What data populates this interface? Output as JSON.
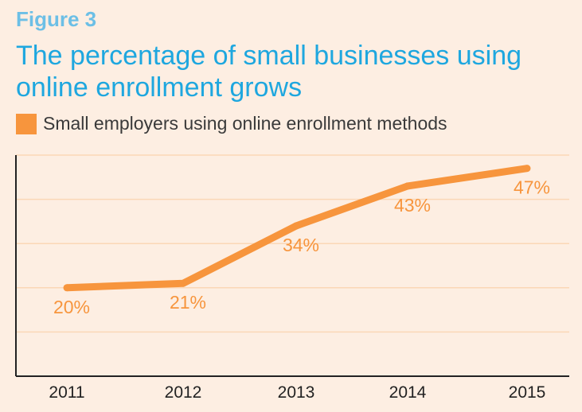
{
  "figure": {
    "label": "Figure 3",
    "title": "The percentage of small businesses using online enrollment grows"
  },
  "colors": {
    "background": "#fdeee2",
    "accent": "#f7953d",
    "label_text": "#f7953d",
    "figure_label": "#6cbfe6",
    "title": "#1ea7df",
    "gridline": "#fbd7b6",
    "axis": "#222222"
  },
  "chart_data": {
    "type": "line",
    "title": "The percentage of small businesses using online enrollment grows",
    "x": [
      "2011",
      "2012",
      "2013",
      "2014",
      "2015"
    ],
    "series": [
      {
        "name": "Small employers using online enrollment methods",
        "values": [
          20,
          21,
          34,
          43,
          47
        ],
        "data_labels": [
          "20%",
          "21%",
          "34%",
          "43%",
          "47%"
        ]
      }
    ],
    "ylim": [
      0,
      50
    ],
    "gridlines": true,
    "y_tick_labels_shown": false,
    "legend": "top-left"
  }
}
